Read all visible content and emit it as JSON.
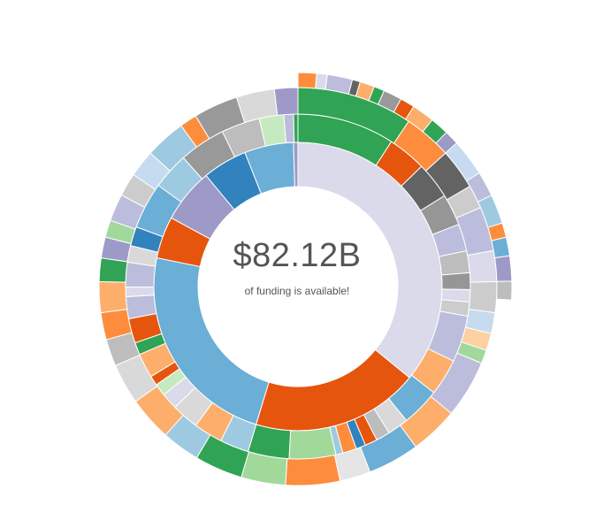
{
  "center": {
    "amount": "$82.12B",
    "caption": "of funding is available!"
  },
  "chart_data": {
    "type": "sunburst",
    "title": "",
    "unit": "share of total funding (%)",
    "rings": [
      {
        "level": 1,
        "segments": [
          {
            "color": "#dadaeb",
            "value": 35.9
          },
          {
            "color": "#e6550d",
            "value": 18.8
          },
          {
            "color": "#6baed6",
            "value": 23.5
          },
          {
            "color": "#e6550d",
            "value": 4.7
          },
          {
            "color": "#9e9ac8",
            "value": 6.1
          },
          {
            "color": "#3182bd",
            "value": 5.0
          },
          {
            "color": "#6baed6",
            "value": 5.5
          },
          {
            "color": "#9e9ac8",
            "value": 0.5
          }
        ]
      },
      {
        "level": 2,
        "segments": [
          {
            "color": "#31a354",
            "value": 11.1
          },
          {
            "color": "#e6550d",
            "value": 4.4
          },
          {
            "color": "#636363",
            "value": 4.2
          },
          {
            "color": "#969696",
            "value": 3.6
          },
          {
            "color": "#bcbddc",
            "value": 3.1
          },
          {
            "color": "#bdbdbd",
            "value": 2.5
          },
          {
            "color": "#969696",
            "value": 1.9
          },
          {
            "color": "#dadaeb",
            "value": 1.4
          },
          {
            "color": "#cccccc",
            "value": 1.6
          },
          {
            "color": "#bcbddc",
            "value": 5.3
          },
          {
            "color": "#fdae6b",
            "value": 4.2
          },
          {
            "color": "#6baed6",
            "value": 4.4
          },
          {
            "color": "#d9d9d9",
            "value": 2.4
          },
          {
            "color": "#bdbdbd",
            "value": 1.6
          },
          {
            "color": "#e6550d",
            "value": 1.4
          },
          {
            "color": "#3182bd",
            "value": 1.1
          },
          {
            "color": "#fd8d3c",
            "value": 1.6
          },
          {
            "color": "#9ecae1",
            "value": 0.8
          },
          {
            "color": "#a1d99b",
            "value": 5.3
          },
          {
            "color": "#31a354",
            "value": 4.7
          },
          {
            "color": "#9ecae1",
            "value": 3.3
          },
          {
            "color": "#fdae6b",
            "value": 3.3
          },
          {
            "color": "#d9d9d9",
            "value": 3.1
          },
          {
            "color": "#dadaeb",
            "value": 1.9
          },
          {
            "color": "#c7e9c0",
            "value": 1.4
          },
          {
            "color": "#e6550d",
            "value": 1.1
          },
          {
            "color": "#fdae6b",
            "value": 2.8
          },
          {
            "color": "#31a354",
            "value": 1.4
          },
          {
            "color": "#e6550d",
            "value": 2.8
          },
          {
            "color": "#bcbddc",
            "value": 2.5
          },
          {
            "color": "#dadaeb",
            "value": 1.1
          },
          {
            "color": "#bcbddc",
            "value": 2.8
          },
          {
            "color": "#d9d9d9",
            "value": 1.9
          },
          {
            "color": "#3182bd",
            "value": 2.2
          },
          {
            "color": "#6baed6",
            "value": 5.3
          },
          {
            "color": "#9ecae1",
            "value": 4.2
          },
          {
            "color": "#999999",
            "value": 5.3
          },
          {
            "color": "#bdbdbd",
            "value": 4.4
          },
          {
            "color": "#c7e9c0",
            "value": 2.8
          },
          {
            "color": "#bcbddc",
            "value": 1.1
          },
          {
            "color": "#31a354",
            "value": 0.5
          }
        ]
      },
      {
        "level": 3,
        "segments": [
          {
            "color": "#31a354",
            "value": 9.4
          },
          {
            "color": "#fd8d3c",
            "value": 3.9
          },
          {
            "color": "#636363",
            "value": 3.3
          },
          {
            "color": "#cccccc",
            "value": 1.9
          },
          {
            "color": "#bcbddc",
            "value": 3.6
          },
          {
            "color": "#dadaeb",
            "value": 2.5
          },
          {
            "color": "#cccccc",
            "value": 2.5
          },
          {
            "color": "#c6dbef",
            "value": 1.7
          },
          {
            "color": "#fdd0a2",
            "value": 1.4
          },
          {
            "color": "#a1d99b",
            "value": 1.1
          },
          {
            "color": "#bcbddc",
            "value": 4.7
          },
          {
            "color": "#fdae6b",
            "value": 3.9
          },
          {
            "color": "#6baed6",
            "value": 4.2
          },
          {
            "color": "#e5e5e5",
            "value": 2.5
          },
          {
            "color": "#fd8d3c",
            "value": 4.4
          },
          {
            "color": "#a1d99b",
            "value": 3.6
          },
          {
            "color": "#31a354",
            "value": 3.9
          },
          {
            "color": "#9ecae1",
            "value": 3.1
          },
          {
            "color": "#fdae6b",
            "value": 3.6
          },
          {
            "color": "#d9d9d9",
            "value": 3.3
          },
          {
            "color": "#bdbdbd",
            "value": 2.2
          },
          {
            "color": "#fd8d3c",
            "value": 2.2
          },
          {
            "color": "#fdae6b",
            "value": 2.5
          },
          {
            "color": "#31a354",
            "value": 1.9
          },
          {
            "color": "#9e9ac8",
            "value": 1.7
          },
          {
            "color": "#a1d99b",
            "value": 1.4
          },
          {
            "color": "#bcbddc",
            "value": 2.2
          },
          {
            "color": "#cccccc",
            "value": 1.9
          },
          {
            "color": "#c6dbef",
            "value": 2.2
          },
          {
            "color": "#9ecae1",
            "value": 3.3
          },
          {
            "color": "#fd8d3c",
            "value": 1.4
          },
          {
            "color": "#999999",
            "value": 3.6
          },
          {
            "color": "#d9d9d9",
            "value": 3.1
          },
          {
            "color": "#9e9ac8",
            "value": 1.9
          }
        ]
      },
      {
        "level": 4,
        "segments": [
          {
            "color": "#fd8d3c",
            "value": 1.4
          },
          {
            "color": "#dadaeb",
            "value": 0.8
          },
          {
            "color": "#bcbddc",
            "value": 1.9
          },
          {
            "color": "#636363",
            "value": 0.6
          },
          {
            "color": "#fdae6b",
            "value": 1.1
          },
          {
            "color": "#31a354",
            "value": 0.8
          },
          {
            "color": "#999999",
            "value": 1.4
          },
          {
            "color": "#e6550d",
            "value": 1.1
          },
          {
            "color": "#fdae6b",
            "value": 1.7
          },
          {
            "color": "#31a354",
            "value": 1.4
          },
          {
            "color": "#9e9ac8",
            "value": 1.1
          },
          {
            "color": "#c6dbef",
            "value": 2.8
          },
          {
            "color": "#bcbddc",
            "value": 1.9
          },
          {
            "color": "#9ecae1",
            "value": 2.2
          },
          {
            "color": "#fd8d3c",
            "value": 1.1
          },
          {
            "color": "#6baed6",
            "value": 1.4
          },
          {
            "color": "#9e9ac8",
            "value": 1.9
          },
          {
            "color": "#bdbdbd",
            "value": 1.4
          }
        ]
      }
    ]
  }
}
